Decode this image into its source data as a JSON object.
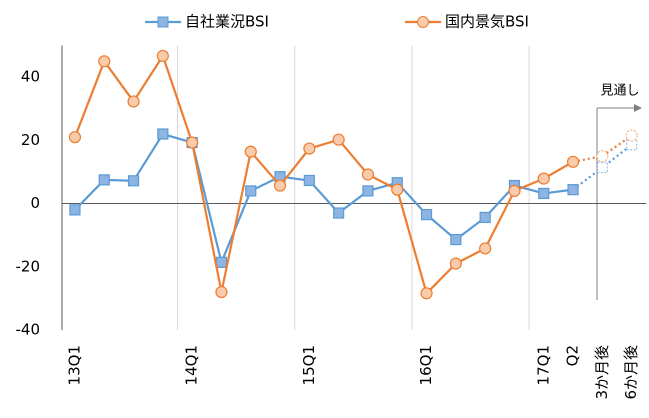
{
  "chart_data": {
    "type": "line",
    "categories": [
      "13Q1",
      null,
      null,
      null,
      "14Q1",
      null,
      null,
      null,
      "15Q1",
      null,
      null,
      null,
      "16Q1",
      null,
      null,
      null,
      "17Q1",
      "Q2",
      "3か月後",
      "6か月後"
    ],
    "series": [
      {
        "name": "自社業況BSI",
        "color": "#5b9bd5",
        "marker": "square",
        "values": [
          -2,
          7.5,
          7.2,
          22,
          19.3,
          -18.6,
          4,
          8.5,
          7.3,
          -3,
          4,
          6.6,
          -3.5,
          -11.4,
          -4.4,
          5.7,
          3.2,
          4.4,
          11.4,
          18.6
        ]
      },
      {
        "name": "国内景気BSI",
        "color": "#ed7d31",
        "marker": "circle",
        "values": [
          21,
          45,
          32.3,
          46.7,
          19.3,
          -28,
          16.4,
          5.7,
          17.4,
          20.2,
          9.2,
          4.4,
          -28.4,
          -19,
          -14.2,
          4,
          7.9,
          13.2,
          15,
          21.5
        ]
      }
    ],
    "forecast_from": 18,
    "annotation": "見通し",
    "ylim": [
      -40,
      50
    ],
    "yticks": [
      -40,
      -20,
      0,
      20,
      40
    ],
    "grid": true
  }
}
